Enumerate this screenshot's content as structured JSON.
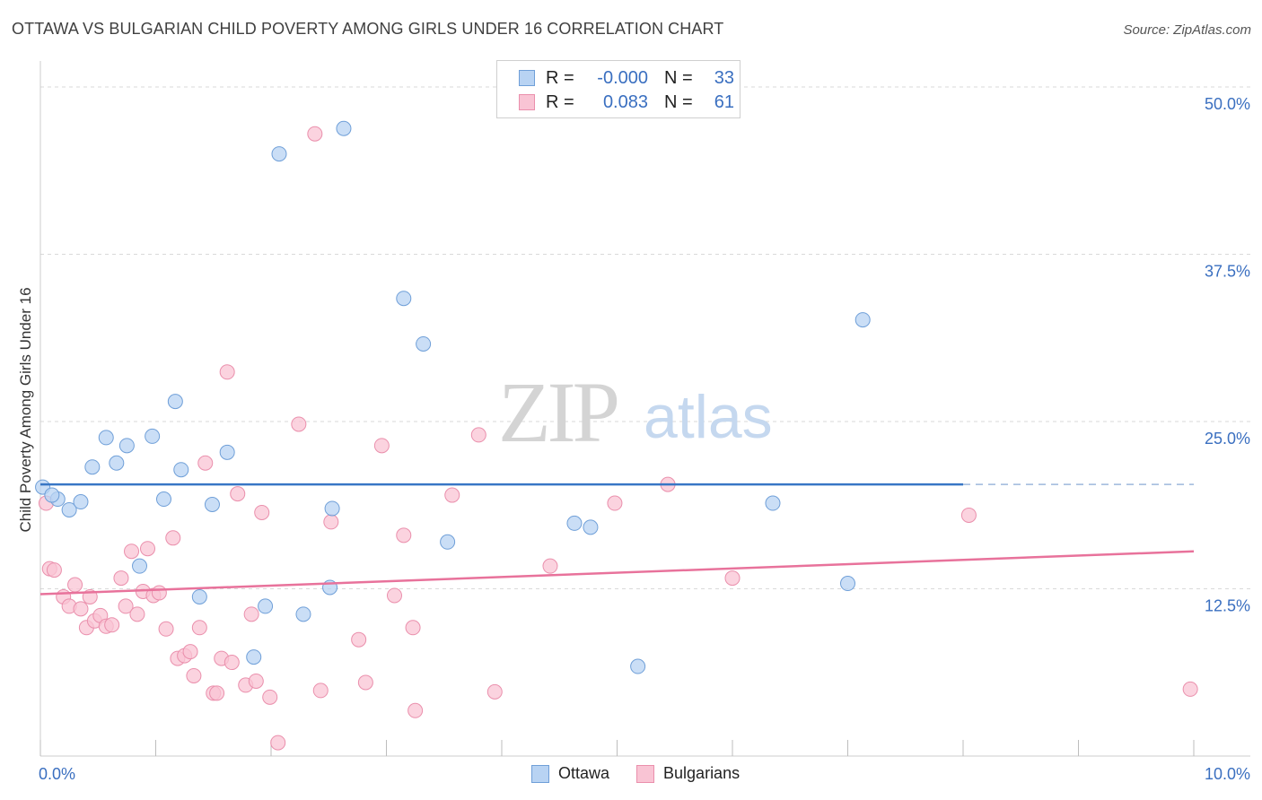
{
  "header": {
    "title": "OTTAWA VS BULGARIAN CHILD POVERTY AMONG GIRLS UNDER 16 CORRELATION CHART",
    "source": "Source: ZipAtlas.com"
  },
  "legend": {
    "rows": [
      {
        "r_label": "R =",
        "r_value": "-0.000",
        "n_label": "N =",
        "n_value": "33"
      },
      {
        "r_label": "R =",
        "r_value": "0.083",
        "n_label": "N =",
        "n_value": "61"
      }
    ]
  },
  "watermark": {
    "zip": "ZIP",
    "atlas": "atlas"
  },
  "colors": {
    "ottawa_fill": "#b8d3f3",
    "ottawa_stroke": "#6f9fd8",
    "ottawa_line": "#3876c5",
    "bulgarians_fill": "#f9c4d4",
    "bulgarians_stroke": "#ea8fac",
    "bulgarians_line": "#e8729b",
    "tick_label": "#3a6fc0",
    "grid": "#d9d9d9"
  },
  "chart_data": {
    "type": "scatter",
    "title": "OTTAWA VS BULGARIAN CHILD POVERTY AMONG GIRLS UNDER 16 CORRELATION CHART",
    "xlabel": "",
    "ylabel": "Child Poverty Among Girls Under 16",
    "xlim": [
      0,
      10
    ],
    "ylim": [
      0,
      50
    ],
    "x_tick_labels": [
      "0.0%",
      "10.0%"
    ],
    "y_ticks": [
      12.5,
      25,
      37.5,
      50
    ],
    "y_tick_labels": [
      "12.5%",
      "25.0%",
      "37.5%",
      "50.0%"
    ],
    "grid": true,
    "legend_position": "bottom",
    "series": [
      {
        "name": "Ottawa",
        "r": -0.0,
        "n": 33,
        "trend": {
          "x": [
            0,
            8.0
          ],
          "y": [
            20.3,
            20.3
          ],
          "dashed_extension_to": 10.0
        },
        "points": [
          [
            0.02,
            20.1
          ],
          [
            0.15,
            19.2
          ],
          [
            0.25,
            18.4
          ],
          [
            0.35,
            19.0
          ],
          [
            0.45,
            21.6
          ],
          [
            0.57,
            23.8
          ],
          [
            0.66,
            21.9
          ],
          [
            0.75,
            23.2
          ],
          [
            0.86,
            14.2
          ],
          [
            0.97,
            23.9
          ],
          [
            1.07,
            19.2
          ],
          [
            1.17,
            26.5
          ],
          [
            1.22,
            21.4
          ],
          [
            1.38,
            11.9
          ],
          [
            1.49,
            18.8
          ],
          [
            1.62,
            22.7
          ],
          [
            1.85,
            7.4
          ],
          [
            1.95,
            11.2
          ],
          [
            2.07,
            45.0
          ],
          [
            2.28,
            10.6
          ],
          [
            2.51,
            12.6
          ],
          [
            2.53,
            18.5
          ],
          [
            2.63,
            46.9
          ],
          [
            3.15,
            34.2
          ],
          [
            3.32,
            30.8
          ],
          [
            3.53,
            16.0
          ],
          [
            4.63,
            17.4
          ],
          [
            4.77,
            17.1
          ],
          [
            5.18,
            6.7
          ],
          [
            6.35,
            18.9
          ],
          [
            7.0,
            12.9
          ],
          [
            7.13,
            32.6
          ],
          [
            0.1,
            19.5
          ]
        ]
      },
      {
        "name": "Bulgarians",
        "r": 0.083,
        "n": 61,
        "trend": {
          "x": [
            0,
            10.0
          ],
          "y": [
            12.1,
            15.3
          ]
        },
        "points": [
          [
            0.05,
            18.9
          ],
          [
            0.08,
            14.0
          ],
          [
            0.12,
            13.9
          ],
          [
            0.2,
            11.9
          ],
          [
            0.25,
            11.2
          ],
          [
            0.3,
            12.8
          ],
          [
            0.35,
            11.0
          ],
          [
            0.4,
            9.6
          ],
          [
            0.43,
            11.9
          ],
          [
            0.47,
            10.1
          ],
          [
            0.52,
            10.5
          ],
          [
            0.57,
            9.7
          ],
          [
            0.62,
            9.8
          ],
          [
            0.7,
            13.3
          ],
          [
            0.74,
            11.2
          ],
          [
            0.79,
            15.3
          ],
          [
            0.84,
            10.6
          ],
          [
            0.89,
            12.3
          ],
          [
            0.93,
            15.5
          ],
          [
            0.98,
            12.0
          ],
          [
            1.03,
            12.2
          ],
          [
            1.09,
            9.5
          ],
          [
            1.15,
            16.3
          ],
          [
            1.19,
            7.3
          ],
          [
            1.25,
            7.5
          ],
          [
            1.3,
            7.8
          ],
          [
            1.33,
            6.0
          ],
          [
            1.38,
            9.6
          ],
          [
            1.43,
            21.9
          ],
          [
            1.5,
            4.7
          ],
          [
            1.53,
            4.7
          ],
          [
            1.57,
            7.3
          ],
          [
            1.62,
            28.7
          ],
          [
            1.66,
            7.0
          ],
          [
            1.71,
            19.6
          ],
          [
            1.78,
            5.3
          ],
          [
            1.83,
            10.6
          ],
          [
            1.87,
            5.6
          ],
          [
            1.92,
            18.2
          ],
          [
            1.99,
            4.4
          ],
          [
            2.06,
            1.0
          ],
          [
            2.24,
            24.8
          ],
          [
            2.43,
            4.9
          ],
          [
            2.52,
            17.5
          ],
          [
            2.76,
            8.7
          ],
          [
            2.82,
            5.5
          ],
          [
            2.96,
            23.2
          ],
          [
            3.07,
            12.0
          ],
          [
            3.15,
            16.5
          ],
          [
            3.23,
            9.6
          ],
          [
            3.25,
            3.4
          ],
          [
            3.57,
            19.5
          ],
          [
            3.8,
            24.0
          ],
          [
            3.94,
            4.8
          ],
          [
            4.42,
            14.2
          ],
          [
            4.98,
            18.9
          ],
          [
            5.44,
            20.3
          ],
          [
            6.0,
            13.3
          ],
          [
            8.05,
            18.0
          ],
          [
            9.97,
            5.0
          ],
          [
            2.38,
            46.5
          ]
        ]
      }
    ]
  }
}
